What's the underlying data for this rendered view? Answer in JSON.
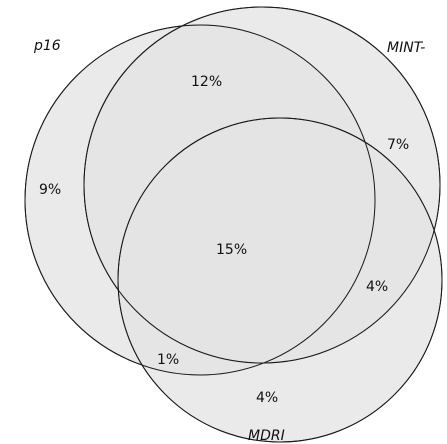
{
  "diagram": {
    "type": "venn",
    "sets": [
      {
        "name": "p16",
        "fill": "#e3e3e3"
      },
      {
        "name": "MINT-",
        "fill": "#e3e3e3"
      },
      {
        "name": "MDRI",
        "fill": "#e3e3e3"
      }
    ],
    "regions": [
      {
        "sets": [
          "p16"
        ],
        "label": "9%"
      },
      {
        "sets": [
          "p16",
          "MINT-"
        ],
        "label": "12%"
      },
      {
        "sets": [
          "MINT-"
        ],
        "label": "7%"
      },
      {
        "sets": [
          "p16",
          "MINT-",
          "MDRI"
        ],
        "label": "15%"
      },
      {
        "sets": [
          "MINT-",
          "MDRI"
        ],
        "label": "4%"
      },
      {
        "sets": [
          "p16",
          "MDRI"
        ],
        "label": "1%"
      },
      {
        "sets": [
          "MDRI"
        ],
        "label": "4%"
      }
    ],
    "colors": {
      "single_fill": "#e3e3e3",
      "overlap_tint": "rgba(0,0,0,0.12)",
      "stroke": "#1a1a1a",
      "background": "#ffffff"
    }
  }
}
